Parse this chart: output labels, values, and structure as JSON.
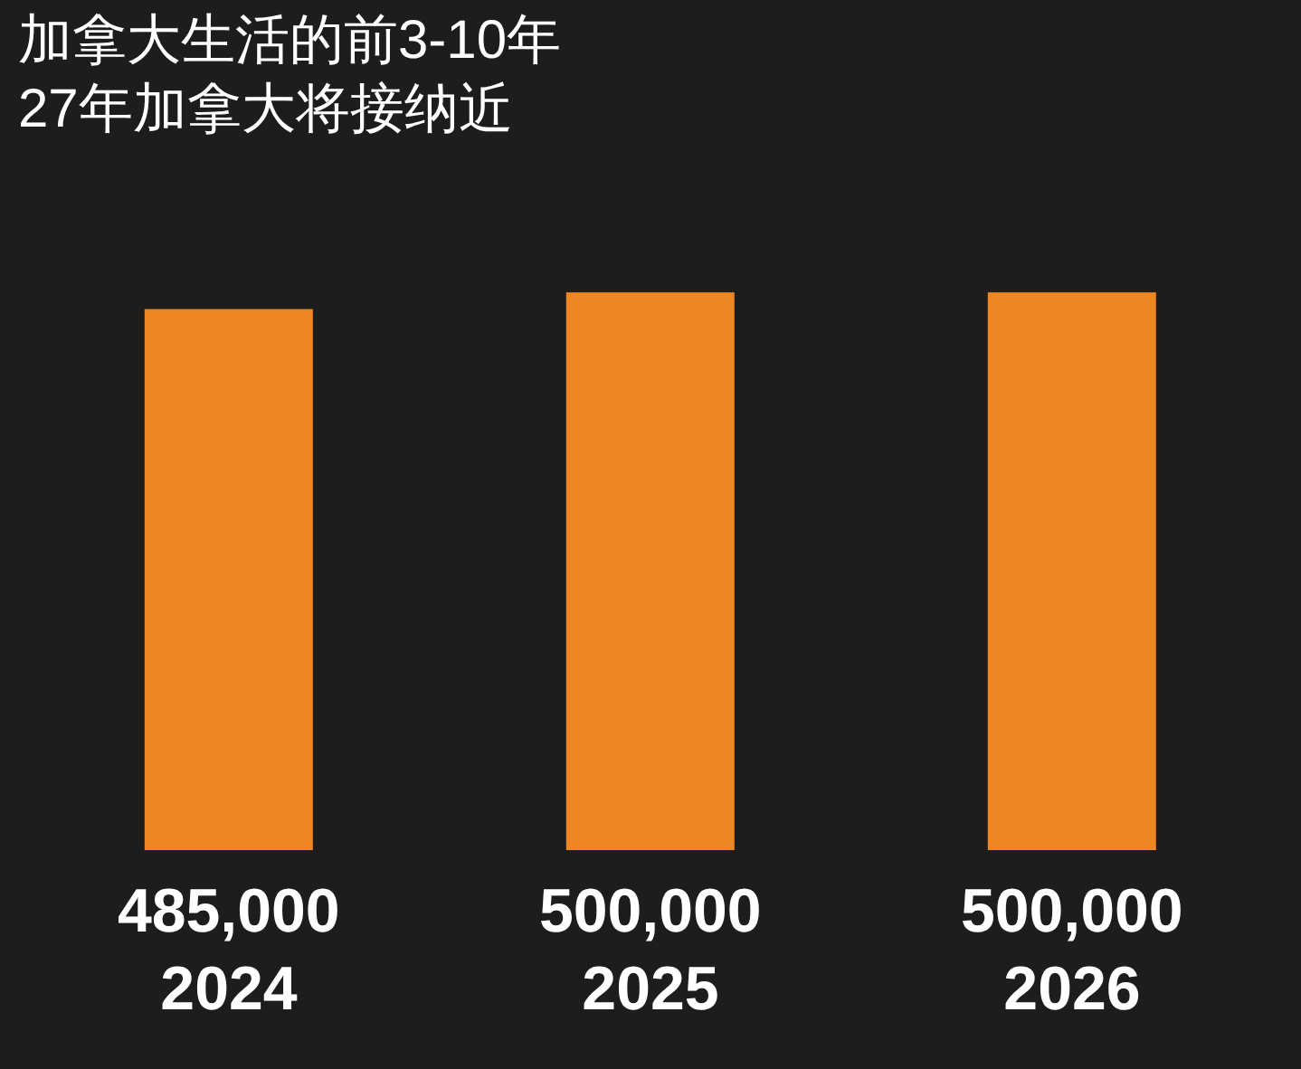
{
  "chart_data": {
    "type": "bar",
    "title": "加拿大生活的前3-10年",
    "subtitle": "27年加拿大将接纳近",
    "categories": [
      "2024",
      "2025",
      "2026"
    ],
    "values": [
      485000,
      500000,
      500000
    ],
    "value_labels": [
      "485,000",
      "500,000",
      "500,000"
    ],
    "color": "#ee8722"
  }
}
